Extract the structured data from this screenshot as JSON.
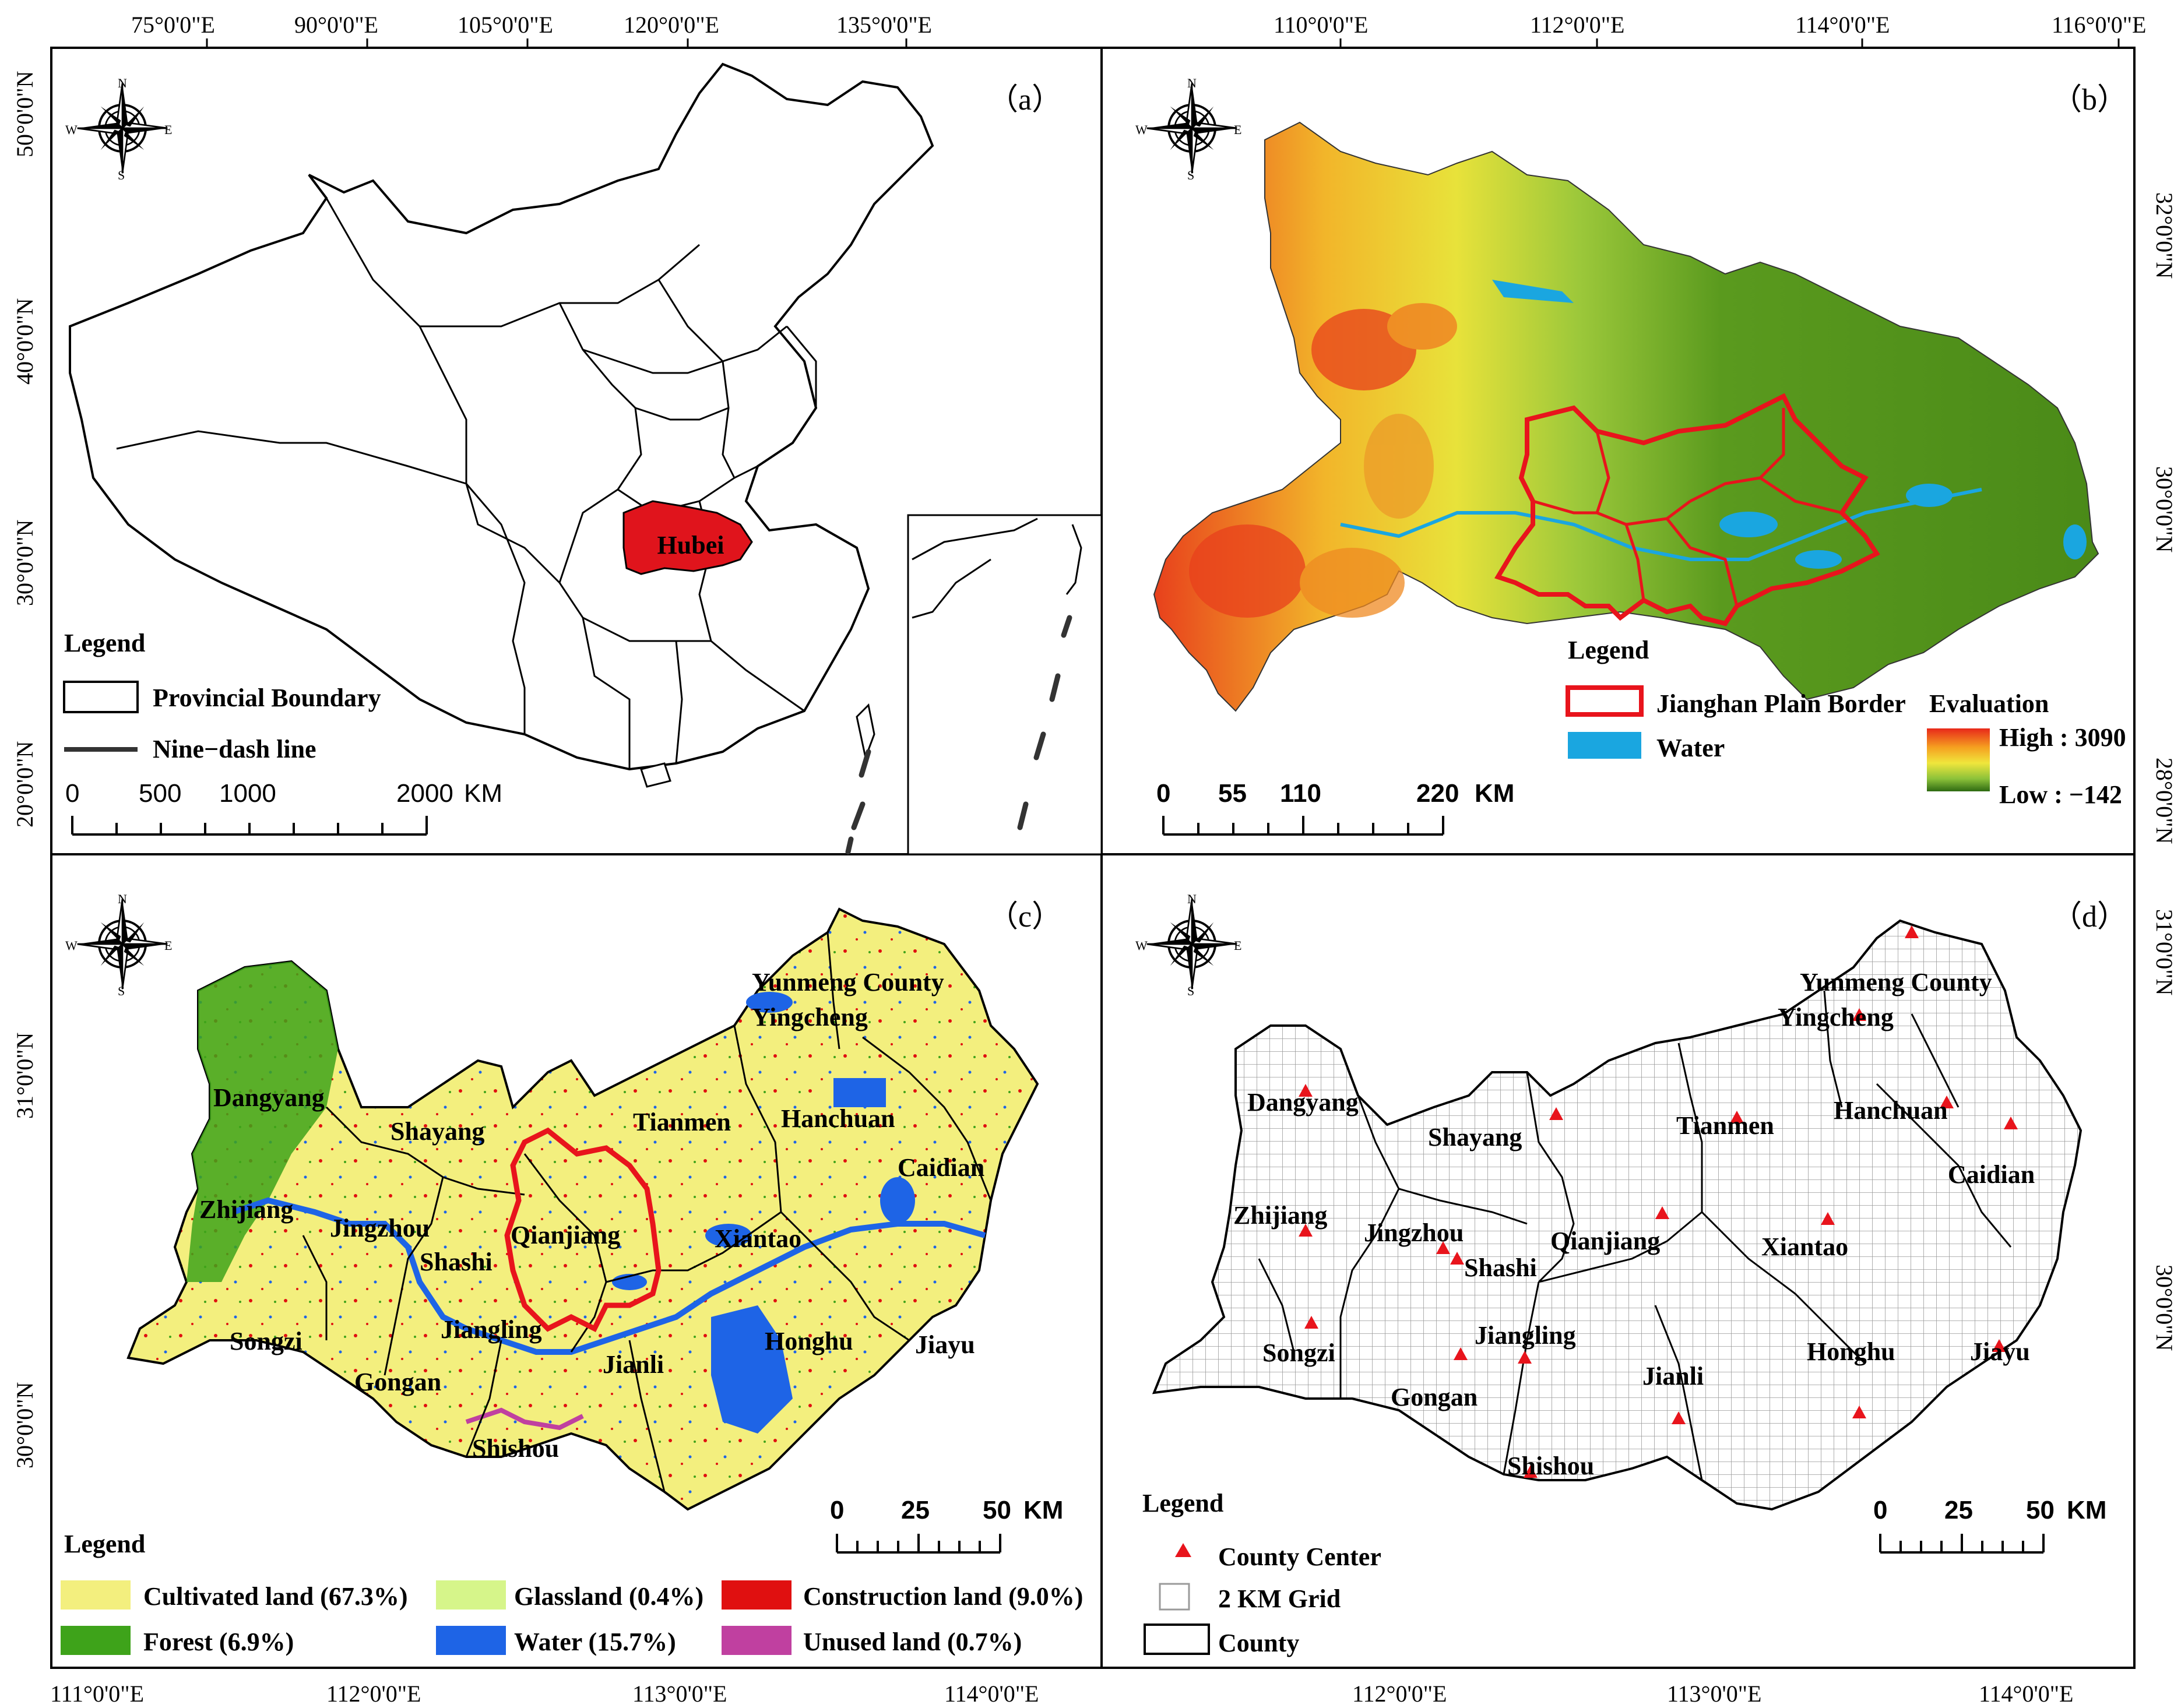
{
  "panels": {
    "a": {
      "label": "（a）",
      "lon_ticks": [
        "75°0'0\"E",
        "90°0'0\"E",
        "105°0'0\"E",
        "120°0'0\"E",
        "135°0'0\"E"
      ],
      "lat_ticks": [
        "50°0'0\"N",
        "40°0'0\"N",
        "30°0'0\"N",
        "20°0'0\"N"
      ],
      "highlight": "Hubei",
      "legend": {
        "title": "Legend",
        "items": [
          "Provincial Boundary",
          "Nine−dash line"
        ]
      },
      "scale": {
        "ticks": [
          "0",
          "500",
          "1000",
          "2000"
        ],
        "unit": "KM"
      }
    },
    "b": {
      "label": "（b）",
      "lon_ticks": [
        "110°0'0\"E",
        "112°0'0\"E",
        "114°0'0\"E",
        "116°0'0\"E"
      ],
      "lat_ticks": [
        "32°0'0\"N",
        "30°0'0\"N",
        "28°0'0\"N"
      ],
      "legend": {
        "title": "Legend",
        "items": [
          "Jianghan Plain Border",
          "Water"
        ],
        "ramp_title": "Evaluation",
        "high": "High : 3090",
        "low": "Low : −142"
      },
      "scale": {
        "ticks": [
          "0",
          "55",
          "110",
          "220"
        ],
        "unit": "KM"
      }
    },
    "c": {
      "label": "（c）",
      "lat_ticks": [
        "31°0'0\"N",
        "30°0'0\"N"
      ],
      "lon_ticks": [
        "111°0'0\"E",
        "112°0'0\"E",
        "113°0'0\"E",
        "114°0'0\"E"
      ],
      "counties": [
        "Yunmeng County",
        "Yingcheng",
        "Dangyang",
        "Tianmen",
        "Hanchuan",
        "Shayang",
        "Caidian",
        "Zhijiang",
        "Jingzhou",
        "Qianjiang",
        "Xiantao",
        "Shashi",
        "Jiangling",
        "Songzi",
        "Gongan",
        "Jianli",
        "Honghu",
        "Jiayu",
        "Shishou"
      ],
      "legend": {
        "title": "Legend",
        "items": [
          "Cultivated land (67.3%)",
          "Glassland (0.4%)",
          "Construction land (9.0%)",
          "Forest (6.9%)",
          "Water (15.7%)",
          "Unused land (0.7%)"
        ]
      },
      "scale": {
        "ticks": [
          "0",
          "25",
          "50"
        ],
        "unit": "KM"
      }
    },
    "d": {
      "label": "（d）",
      "lat_ticks": [
        "31°0'0\"N",
        "30°0'0\"N"
      ],
      "lon_ticks": [
        "112°0'0\"E",
        "113°0'0\"E",
        "114°0'0\"E"
      ],
      "counties": [
        "Yunmeng County",
        "Yingcheng",
        "Dangyang",
        "Tianmen",
        "Hanchuan",
        "Shayang",
        "Caidian",
        "Zhijiang",
        "Jingzhou",
        "Qianjiang",
        "Xiantao",
        "Shashi",
        "Jiangling",
        "Songzi",
        "Gongan",
        "Jianli",
        "Honghu",
        "Jiayu",
        "Shishou"
      ],
      "legend": {
        "title": "Legend",
        "items": [
          "County Center",
          "2 KM Grid",
          "County"
        ]
      },
      "scale": {
        "ticks": [
          "0",
          "25",
          "50"
        ],
        "unit": "KM"
      }
    }
  },
  "compass": {
    "n": "N",
    "s": "S",
    "e": "E",
    "w": "W"
  },
  "colors": {
    "hubei": "#e0141c",
    "border_red": "#e8141c",
    "water": "#1e64e6",
    "water_b": "#1aa6e0",
    "cultivated": "#f3ef7e",
    "forest": "#3ea31a",
    "grassland": "#d6f58a",
    "construction": "#e01010",
    "unused": "#c040a0",
    "dem_high": "#e8281a",
    "dem_mid": "#f0e63c",
    "dem_low": "#3d7a14"
  }
}
